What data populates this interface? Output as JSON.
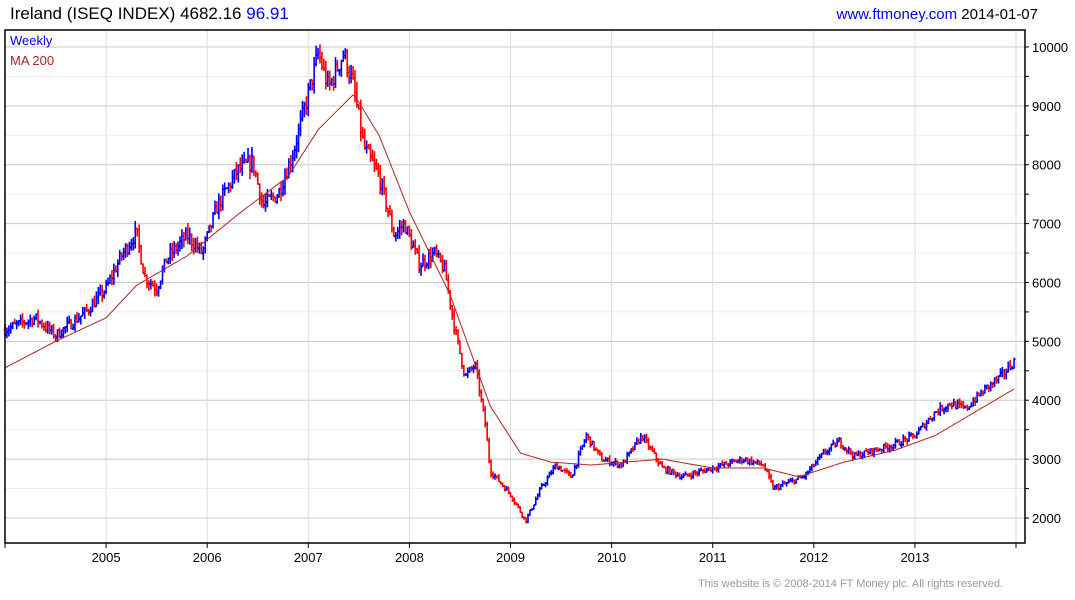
{
  "header": {
    "name": "Ireland (ISEQ INDEX)",
    "value": "4682.16",
    "change": "96.91",
    "site": "www.ftmoney.com",
    "date": "2014-01-07"
  },
  "footer": "This website is © 2008-2014 FT Money plc. All rights reserved.",
  "colors": {
    "up": "#0000ff",
    "down": "#ff0000",
    "ma": "#b22222",
    "grid": "#d8d8d8"
  },
  "chart_data": {
    "type": "line",
    "title": "Ireland (ISEQ INDEX)",
    "legend": [
      "Weekly",
      "MA 200"
    ],
    "legend_position": "top-left",
    "xlim": [
      2004.0,
      2014.02
    ],
    "ylim": [
      1550,
      10300
    ],
    "x_ticks": [
      "2005",
      "2006",
      "2007",
      "2008",
      "2009",
      "2010",
      "2011",
      "2012",
      "2013"
    ],
    "y_ticks": [
      2000,
      3000,
      4000,
      5000,
      6000,
      7000,
      8000,
      9000,
      10000
    ],
    "grid": true,
    "series": [
      {
        "name": "Weekly",
        "x": [
          2004.0,
          2004.3,
          2004.5,
          2004.8,
          2005.0,
          2005.15,
          2005.3,
          2005.38,
          2005.5,
          2005.6,
          2005.8,
          2005.95,
          2006.1,
          2006.3,
          2006.45,
          2006.55,
          2006.7,
          2006.85,
          2007.0,
          2007.1,
          2007.2,
          2007.35,
          2007.45,
          2007.55,
          2007.7,
          2007.85,
          2007.95,
          2008.1,
          2008.25,
          2008.35,
          2008.45,
          2008.55,
          2008.65,
          2008.75,
          2008.8,
          2008.9,
          2009.0,
          2009.15,
          2009.3,
          2009.45,
          2009.6,
          2009.75,
          2009.9,
          2010.1,
          2010.3,
          2010.5,
          2010.7,
          2010.9,
          2011.1,
          2011.3,
          2011.5,
          2011.6,
          2011.75,
          2011.9,
          2012.1,
          2012.25,
          2012.4,
          2012.6,
          2012.8,
          2013.0,
          2013.2,
          2013.35,
          2013.5,
          2013.7,
          2013.85,
          2013.99
        ],
        "values": [
          5200,
          5400,
          5100,
          5500,
          5900,
          6450,
          6850,
          6100,
          5900,
          6400,
          6800,
          6500,
          7300,
          7900,
          8050,
          7300,
          7500,
          8200,
          9200,
          9900,
          9300,
          9900,
          9300,
          8300,
          7800,
          6800,
          7000,
          6300,
          6500,
          6200,
          5200,
          4400,
          4600,
          3600,
          2800,
          2600,
          2400,
          1950,
          2500,
          2900,
          2700,
          3400,
          3000,
          2900,
          3400,
          2850,
          2700,
          2800,
          2900,
          3000,
          2900,
          2500,
          2600,
          2700,
          3100,
          3300,
          3050,
          3150,
          3250,
          3400,
          3800,
          3950,
          3850,
          4200,
          4400,
          4680
        ]
      },
      {
        "name": "MA 200",
        "x": [
          2004.0,
          2004.5,
          2005.0,
          2005.3,
          2005.8,
          2006.3,
          2006.8,
          2007.1,
          2007.45,
          2007.7,
          2008.0,
          2008.4,
          2008.8,
          2009.1,
          2009.4,
          2009.8,
          2010.5,
          2011.0,
          2011.5,
          2011.85,
          2012.3,
          2012.8,
          2013.2,
          2013.99
        ],
        "values": [
          4550,
          5000,
          5400,
          5950,
          6450,
          7150,
          7800,
          8600,
          9200,
          8500,
          7200,
          5800,
          3900,
          3100,
          2950,
          2900,
          3000,
          2850,
          2850,
          2700,
          2950,
          3150,
          3400,
          4200
        ]
      }
    ]
  }
}
